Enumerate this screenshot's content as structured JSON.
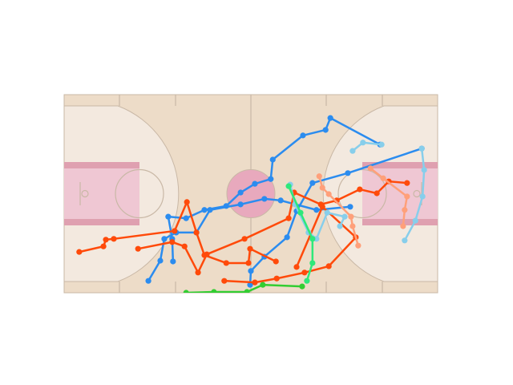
{
  "chart_data": {
    "type": "line",
    "xlim": [
      0,
      94
    ],
    "ylim": [
      0,
      50
    ],
    "series": [
      {
        "color": "#2b8cef",
        "x": [
          79.5,
          67.0,
          65.8,
          60.1,
          52.5,
          52.0,
          48.0,
          44.4,
          40.8,
          35.3,
          30.7,
          26.2,
          27.2,
          27.4
        ],
        "values": [
          37.4,
          44.1,
          41.1,
          39.7,
          33.6,
          28.7,
          27.5,
          25.3,
          21.9,
          20.9,
          18.8,
          19.2,
          13.6,
          7.9
        ]
      },
      {
        "color": "#2b8cef",
        "x": [
          90.0,
          71.4,
          62.5,
          58.5,
          56.1,
          50.4,
          47.0,
          46.8
        ],
        "values": [
          36.4,
          30.2,
          27.7,
          20.6,
          14.0,
          9.1,
          5.5,
          2.0
        ]
      },
      {
        "color": "#2b8cef",
        "x": [
          21.2,
          24.2,
          25.2,
          28.2,
          33.3,
          36.7,
          44.4,
          50.4,
          54.5,
          63.5,
          72.0
        ],
        "values": [
          3.0,
          8.1,
          13.6,
          15.2,
          15.2,
          20.9,
          22.3,
          23.7,
          23.3,
          20.9,
          21.7
        ]
      },
      {
        "color": "#ff4a0a",
        "x": [
          3.8,
          9.9,
          10.5,
          12.5,
          27.8,
          30.9,
          33.3,
          35.3,
          40.8,
          46.4,
          46.8,
          53.3
        ],
        "values": [
          10.3,
          11.7,
          13.4,
          13.6,
          15.6,
          22.9,
          15.2,
          9.5,
          7.5,
          7.5,
          11.1,
          7.9
        ]
      },
      {
        "color": "#ff4a0a",
        "x": [
          18.6,
          27.2,
          30.3,
          33.7,
          35.9,
          45.4,
          56.5,
          57.9,
          64.6,
          68.6,
          74.4,
          78.7,
          81.7,
          86.3
        ],
        "values": [
          11.1,
          12.8,
          11.7,
          5.1,
          9.7,
          13.6,
          18.8,
          25.3,
          22.3,
          23.3,
          26.1,
          25.1,
          28.1,
          27.7
        ]
      },
      {
        "color": "#ff4a0a",
        "x": [
          40.3,
          48.0,
          53.5,
          60.5,
          66.6,
          73.4,
          65.0,
          58.5
        ],
        "values": [
          3.0,
          2.6,
          3.6,
          5.1,
          6.7,
          14.0,
          21.7,
          6.5
        ]
      },
      {
        "color": "#87ceeb",
        "x": [
          72.6,
          75.2,
          79.9
        ],
        "values": [
          35.8,
          37.9,
          37.4
        ]
      },
      {
        "color": "#87ceeb",
        "x": [
          90.0,
          90.6,
          90.2,
          88.4,
          85.7
        ],
        "values": [
          36.4,
          31.0,
          24.3,
          18.2,
          13.2
        ]
      },
      {
        "color": "#87ceeb",
        "x": [
          56.9,
          58.1,
          61.5,
          63.5,
          66.2,
          70.6,
          69.4
        ],
        "values": [
          27.3,
          22.3,
          15.2,
          13.6,
          20.2,
          19.2,
          16.8
        ]
      },
      {
        "color": "#ffa07a",
        "x": [
          64.2,
          65.0,
          66.6,
          72.2,
          72.6,
          74.0
        ],
        "values": [
          29.4,
          26.5,
          24.9,
          19.2,
          16.8,
          11.9
        ]
      },
      {
        "color": "#ffa07a",
        "x": [
          77.1,
          80.3,
          86.3,
          85.7,
          85.3
        ],
        "values": [
          31.4,
          28.9,
          24.3,
          20.9,
          16.8
        ]
      },
      {
        "color": "#32cd32",
        "x": [
          30.7,
          37.7,
          46.0,
          50.0,
          59.9
        ],
        "values": [
          0,
          0.2,
          0.2,
          2.0,
          1.6
        ]
      },
      {
        "color": "#2ee87a",
        "x": [
          56.5,
          59.5,
          62.5,
          62.5,
          61.1
        ],
        "values": [
          26.9,
          20.2,
          13.6,
          7.5,
          3.0
        ]
      }
    ]
  }
}
